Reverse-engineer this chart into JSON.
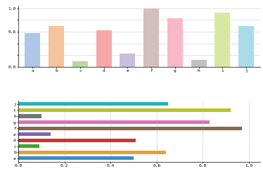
{
  "categories": [
    "a",
    "b",
    "c",
    "d",
    "e",
    "f",
    "g",
    "h",
    "i",
    "j"
  ],
  "bar_values": [
    0.58,
    0.7,
    0.09,
    0.62,
    0.22,
    1.0,
    0.83,
    0.12,
    0.92,
    0.7
  ],
  "bar_colors": [
    "#aec6e8",
    "#f4c49a",
    "#b5d9a1",
    "#f4a9a8",
    "#c9bde0",
    "#d4bfbc",
    "#f9b8c8",
    "#c0c0c0",
    "#d9e8a0",
    "#a8dce8"
  ],
  "hbar_labels": [
    "a",
    "b",
    "c",
    "d",
    "e",
    "f",
    "g",
    "h",
    "i",
    "j"
  ],
  "hbar_values": [
    0.5,
    0.64,
    0.09,
    0.51,
    0.14,
    0.97,
    0.83,
    0.1,
    0.92,
    0.65
  ],
  "hbar_colors": [
    "#3a8ec4",
    "#e8a030",
    "#3aaa30",
    "#d43030",
    "#7868b8",
    "#8a6848",
    "#e070b8",
    "#707878",
    "#b8c428",
    "#28b0c0"
  ],
  "ytick_bar": [
    0.0,
    0.2,
    0.4,
    0.6,
    0.8,
    1.0
  ],
  "ytick_bar_labels": [
    "0.0",
    "",
    "",
    "0.6",
    "",
    "1.0"
  ],
  "xtick_hbar": [
    0.0,
    0.2,
    0.4,
    0.6,
    0.8,
    1.0
  ],
  "xtick_hbar_labels": [
    "0.0",
    "0.2",
    "0.4",
    "0.6",
    "0.8",
    "1.0"
  ]
}
